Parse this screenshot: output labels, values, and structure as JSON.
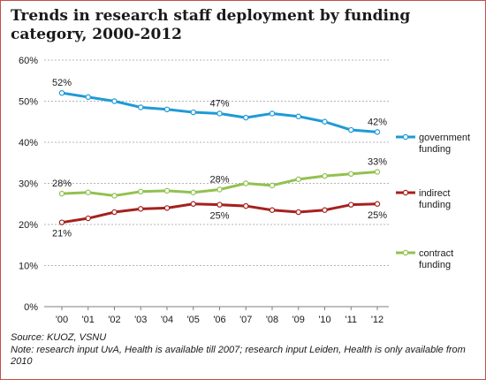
{
  "chart_data": {
    "type": "line",
    "title": "Trends in research staff deployment by funding category, 2000-2012",
    "categories": [
      "'00",
      "'01",
      "'02",
      "'03",
      "'04",
      "'05",
      "'06",
      "'07",
      "'08",
      "'09",
      "'10",
      "'11",
      "'12"
    ],
    "ylim": [
      0,
      60
    ],
    "yticks": [
      "0%",
      "10%",
      "20%",
      "30%",
      "40%",
      "50%",
      "60%"
    ],
    "grid": true,
    "legend_position": "right",
    "series": [
      {
        "name": "government funding",
        "legend_lines": [
          "government",
          "funding"
        ],
        "color": "#1f9ad6",
        "values": [
          52,
          51,
          50,
          48.5,
          48,
          47.3,
          47,
          46,
          47,
          46.3,
          45,
          43,
          42.5
        ],
        "labels": [
          {
            "index": 0,
            "text": "52%",
            "pos": "above"
          },
          {
            "index": 6,
            "text": "47%",
            "pos": "above"
          },
          {
            "index": 12,
            "text": "42%",
            "pos": "above"
          }
        ]
      },
      {
        "name": "indirect funding",
        "legend_lines": [
          "indirect",
          "funding"
        ],
        "color": "#a5211f",
        "values": [
          20.5,
          21.5,
          23,
          23.8,
          24,
          25,
          24.8,
          24.5,
          23.5,
          23,
          23.5,
          24.8,
          25
        ],
        "labels": [
          {
            "index": 0,
            "text": "21%",
            "pos": "below"
          },
          {
            "index": 6,
            "text": "25%",
            "pos": "below"
          },
          {
            "index": 12,
            "text": "25%",
            "pos": "below"
          }
        ]
      },
      {
        "name": "contract funding",
        "legend_lines": [
          "contract",
          "funding"
        ],
        "color": "#92c150",
        "values": [
          27.5,
          27.8,
          27,
          28,
          28.2,
          27.8,
          28.5,
          30,
          29.5,
          31,
          31.8,
          32.3,
          32.8
        ],
        "labels": [
          {
            "index": 0,
            "text": "28%",
            "pos": "above"
          },
          {
            "index": 6,
            "text": "28%",
            "pos": "above"
          },
          {
            "index": 12,
            "text": "33%",
            "pos": "above"
          }
        ]
      }
    ]
  },
  "footer": {
    "source": "Source: KUOZ, VSNU",
    "note": "Note: research input UvA, Health is available till 2007; research input Leiden, Health is only available from 2010"
  }
}
